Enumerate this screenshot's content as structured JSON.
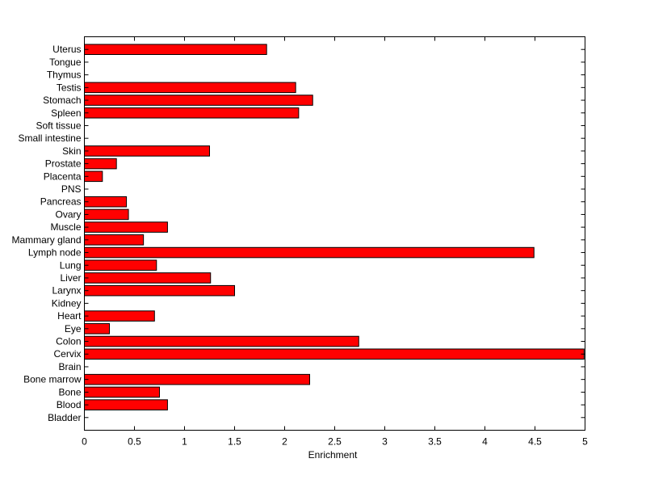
{
  "chart_data": {
    "type": "bar",
    "orientation": "horizontal",
    "categories": [
      "Bladder",
      "Blood",
      "Bone",
      "Bone marrow",
      "Brain",
      "Cervix",
      "Colon",
      "Eye",
      "Heart",
      "Kidney",
      "Larynx",
      "Liver",
      "Lung",
      "Lymph node",
      "Mammary gland",
      "Muscle",
      "Ovary",
      "Pancreas",
      "PNS",
      "Placenta",
      "Prostate",
      "Skin",
      "Small intestine",
      "Soft tissue",
      "Spleen",
      "Stomach",
      "Testis",
      "Thymus",
      "Tongue",
      "Uterus"
    ],
    "values": [
      0,
      0.83,
      0.75,
      2.25,
      0,
      4.99,
      2.74,
      0.25,
      0.7,
      0,
      1.5,
      1.26,
      0.72,
      4.49,
      0.59,
      0.83,
      0.44,
      0.42,
      0,
      0.18,
      0.32,
      1.25,
      0,
      0,
      2.14,
      2.28,
      2.11,
      0,
      0,
      1.82
    ],
    "xlabel": "Enrichment",
    "ylabel": "",
    "title": "",
    "xlim": [
      0,
      5
    ],
    "xticks": [
      "0",
      "0.5",
      "1",
      "1.5",
      "2",
      "2.5",
      "3",
      "3.5",
      "4",
      "4.5",
      "5"
    ],
    "grid": false,
    "bar_color": "#ff0000",
    "edge_color": "#000000"
  }
}
